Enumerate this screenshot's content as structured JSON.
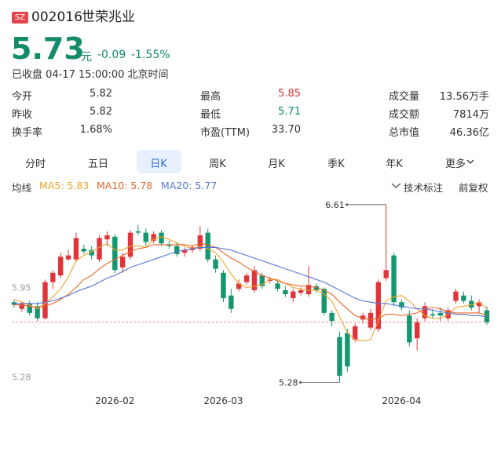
{
  "header": {
    "market": "SZ",
    "code": "002016",
    "name": "世荣兆业"
  },
  "quote": {
    "price": 5.73,
    "unit": "元",
    "change": -0.09,
    "change_pct": "-1.55%",
    "status": "已收盘 04-17 15:00:00 北京时间"
  },
  "stats": [
    [
      {
        "label": "今开",
        "value": "5.82"
      },
      {
        "label": "最高",
        "value": "5.85",
        "color": "#e0343a"
      },
      {
        "label": "成交量",
        "value": "13.56万手"
      }
    ],
    [
      {
        "label": "昨收",
        "value": "5.82"
      },
      {
        "label": "最低",
        "value": "5.71",
        "color": "#138a68"
      },
      {
        "label": "成交额",
        "value": "7814万"
      }
    ],
    [
      {
        "label": "换手率",
        "value": "1.68%"
      },
      {
        "label": "市盈(TTM)",
        "value": "33.70"
      },
      {
        "label": "总市值",
        "value": "46.36亿"
      }
    ]
  ],
  "tabs": [
    {
      "label": "分时"
    },
    {
      "label": "五日"
    },
    {
      "label": "日K",
      "active": true
    },
    {
      "label": "周K"
    },
    {
      "label": "月K"
    },
    {
      "label": "季K"
    },
    {
      "label": "年K"
    },
    {
      "label": "更多"
    }
  ],
  "toolbar": {
    "ma_title": "均线",
    "annotate": "技术标注",
    "adjust": "前复权"
  },
  "chart_data": {
    "type": "candlestick",
    "up_color": "#e0343a",
    "down_color": "#14966e",
    "categories": [
      null,
      null,
      null,
      null,
      null,
      null,
      null,
      null,
      null,
      null,
      null,
      null,
      null,
      "2026-02",
      null,
      null,
      null,
      null,
      null,
      null,
      null,
      null,
      null,
      null,
      null,
      null,
      null,
      "2026-03",
      null,
      null,
      null,
      null,
      null,
      null,
      null,
      null,
      null,
      null,
      null,
      null,
      null,
      null,
      null,
      null,
      null,
      null,
      null,
      null,
      null,
      null,
      "2026-04",
      null,
      null,
      null,
      null,
      null,
      null,
      null,
      null,
      null,
      null,
      null
    ],
    "ohlc": [
      [
        5.88,
        5.9,
        5.84,
        5.86
      ],
      [
        5.83,
        5.88,
        5.81,
        5.87
      ],
      [
        5.87,
        5.89,
        5.78,
        5.8
      ],
      [
        5.85,
        5.88,
        5.74,
        5.76
      ],
      [
        5.76,
        6.05,
        5.75,
        6.03
      ],
      [
        6.03,
        6.12,
        5.98,
        6.1
      ],
      [
        6.08,
        6.25,
        6.06,
        6.22
      ],
      [
        6.2,
        6.27,
        6.19,
        6.23
      ],
      [
        6.2,
        6.4,
        6.18,
        6.36
      ],
      [
        6.28,
        6.31,
        6.24,
        6.26
      ],
      [
        6.27,
        6.3,
        6.2,
        6.23
      ],
      [
        6.2,
        6.38,
        6.18,
        6.36
      ],
      [
        6.35,
        6.41,
        6.3,
        6.38
      ],
      [
        6.37,
        6.39,
        6.1,
        6.12
      ],
      [
        6.14,
        6.25,
        6.1,
        6.22
      ],
      [
        6.22,
        6.42,
        6.2,
        6.4
      ],
      [
        6.41,
        6.46,
        6.38,
        6.4
      ],
      [
        6.4,
        6.43,
        6.3,
        6.33
      ],
      [
        6.34,
        6.41,
        6.32,
        6.39
      ],
      [
        6.4,
        6.42,
        6.3,
        6.32
      ],
      [
        6.31,
        6.34,
        6.28,
        6.3
      ],
      [
        6.3,
        6.33,
        6.22,
        6.24
      ],
      [
        6.25,
        6.29,
        6.22,
        6.27
      ],
      [
        6.27,
        6.31,
        6.25,
        6.29
      ],
      [
        6.28,
        6.45,
        6.26,
        6.38
      ],
      [
        6.4,
        6.43,
        6.18,
        6.2
      ],
      [
        6.2,
        6.23,
        6.1,
        6.13
      ],
      [
        6.1,
        6.12,
        5.88,
        5.91
      ],
      [
        5.93,
        5.98,
        5.8,
        5.83
      ],
      [
        5.98,
        6.05,
        5.96,
        6.02
      ],
      [
        6.03,
        6.1,
        6.01,
        6.08
      ],
      [
        5.97,
        6.15,
        5.95,
        6.12
      ],
      [
        6.08,
        6.1,
        5.98,
        6.0
      ],
      [
        6.04,
        6.07,
        6.02,
        6.05
      ],
      [
        6.02,
        6.04,
        5.96,
        5.98
      ],
      [
        5.97,
        6.0,
        5.92,
        5.94
      ],
      [
        5.91,
        5.98,
        5.88,
        5.96
      ],
      [
        5.95,
        5.99,
        5.93,
        5.97
      ],
      [
        5.94,
        6.15,
        5.92,
        6.01
      ],
      [
        6.0,
        6.02,
        5.95,
        5.97
      ],
      [
        5.98,
        5.99,
        5.78,
        5.8
      ],
      [
        5.8,
        5.82,
        5.7,
        5.74
      ],
      [
        5.62,
        5.66,
        5.28,
        5.33
      ],
      [
        5.65,
        5.68,
        5.36,
        5.4
      ],
      [
        5.6,
        5.72,
        5.58,
        5.7
      ],
      [
        5.75,
        5.8,
        5.72,
        5.78
      ],
      [
        5.69,
        5.83,
        5.67,
        5.8
      ],
      [
        5.68,
        6.05,
        5.66,
        6.03
      ],
      [
        6.06,
        6.61,
        6.04,
        6.12
      ],
      [
        6.23,
        6.25,
        5.85,
        5.88
      ],
      [
        5.88,
        5.9,
        5.82,
        5.84
      ],
      [
        5.78,
        5.82,
        5.55,
        5.58
      ],
      [
        5.61,
        5.76,
        5.52,
        5.73
      ],
      [
        5.76,
        5.88,
        5.74,
        5.85
      ],
      [
        5.79,
        5.83,
        5.76,
        5.78
      ],
      [
        5.8,
        5.84,
        5.74,
        5.78
      ],
      [
        5.76,
        5.84,
        5.74,
        5.82
      ],
      [
        5.89,
        5.98,
        5.87,
        5.96
      ],
      [
        5.93,
        5.96,
        5.87,
        5.89
      ],
      [
        5.89,
        5.93,
        5.82,
        5.84
      ],
      [
        5.85,
        5.9,
        5.8,
        5.88
      ],
      [
        5.82,
        5.85,
        5.71,
        5.73
      ]
    ],
    "series": [
      {
        "name": "MA5: 5.83",
        "color": "#f0a42c",
        "values": [
          5.9,
          5.88,
          5.86,
          5.83,
          5.87,
          5.92,
          5.98,
          6.07,
          6.19,
          6.23,
          6.26,
          6.29,
          6.32,
          6.27,
          6.27,
          6.3,
          6.3,
          6.29,
          6.35,
          6.37,
          6.35,
          6.32,
          6.3,
          6.28,
          6.3,
          6.28,
          6.25,
          6.18,
          6.09,
          6.02,
          5.99,
          6.0,
          6.01,
          6.05,
          6.05,
          6.02,
          5.99,
          5.98,
          5.97,
          5.97,
          5.94,
          5.89,
          5.77,
          5.65,
          5.6,
          5.59,
          5.6,
          5.74,
          5.89,
          5.92,
          5.93,
          5.89,
          5.83,
          5.78,
          5.76,
          5.76,
          5.79,
          5.84,
          5.85,
          5.86,
          5.88,
          5.83
        ]
      },
      {
        "name": "MA10: 5.78",
        "color": "#e8652a",
        "values": [
          5.86,
          5.86,
          5.85,
          5.84,
          5.85,
          5.87,
          5.9,
          5.94,
          5.99,
          6.05,
          6.08,
          6.13,
          6.17,
          6.2,
          6.23,
          6.26,
          6.28,
          6.29,
          6.31,
          6.31,
          6.31,
          6.31,
          6.31,
          6.3,
          6.32,
          6.31,
          6.29,
          6.25,
          6.21,
          6.18,
          6.14,
          6.11,
          6.08,
          6.06,
          6.04,
          6.02,
          6.01,
          6.0,
          6.0,
          5.99,
          5.97,
          5.94,
          5.88,
          5.83,
          5.78,
          5.76,
          5.75,
          5.76,
          5.79,
          5.79,
          5.78,
          5.79,
          5.8,
          5.83,
          5.84,
          5.83,
          5.81,
          5.8,
          5.8,
          5.8,
          5.8,
          5.78
        ]
      },
      {
        "name": "MA20: 5.77",
        "color": "#5577d4",
        "values": [
          5.87,
          5.87,
          5.87,
          5.87,
          5.88,
          5.89,
          5.91,
          5.93,
          5.96,
          5.98,
          6.0,
          6.03,
          6.06,
          6.08,
          6.11,
          6.14,
          6.16,
          6.18,
          6.2,
          6.22,
          6.24,
          6.26,
          6.27,
          6.28,
          6.29,
          6.29,
          6.29,
          6.28,
          6.27,
          6.25,
          6.23,
          6.21,
          6.19,
          6.17,
          6.15,
          6.13,
          6.11,
          6.09,
          6.07,
          6.05,
          6.03,
          6.0,
          5.97,
          5.94,
          5.91,
          5.89,
          5.88,
          5.87,
          5.87,
          5.86,
          5.85,
          5.84,
          5.83,
          5.83,
          5.82,
          5.81,
          5.8,
          5.79,
          5.79,
          5.78,
          5.78,
          5.77
        ]
      }
    ],
    "ylim": [
      5.23,
      6.65
    ],
    "yticks": [
      5.95,
      5.28
    ],
    "grid": false,
    "high_label": 6.61,
    "low_label": 5.28
  }
}
